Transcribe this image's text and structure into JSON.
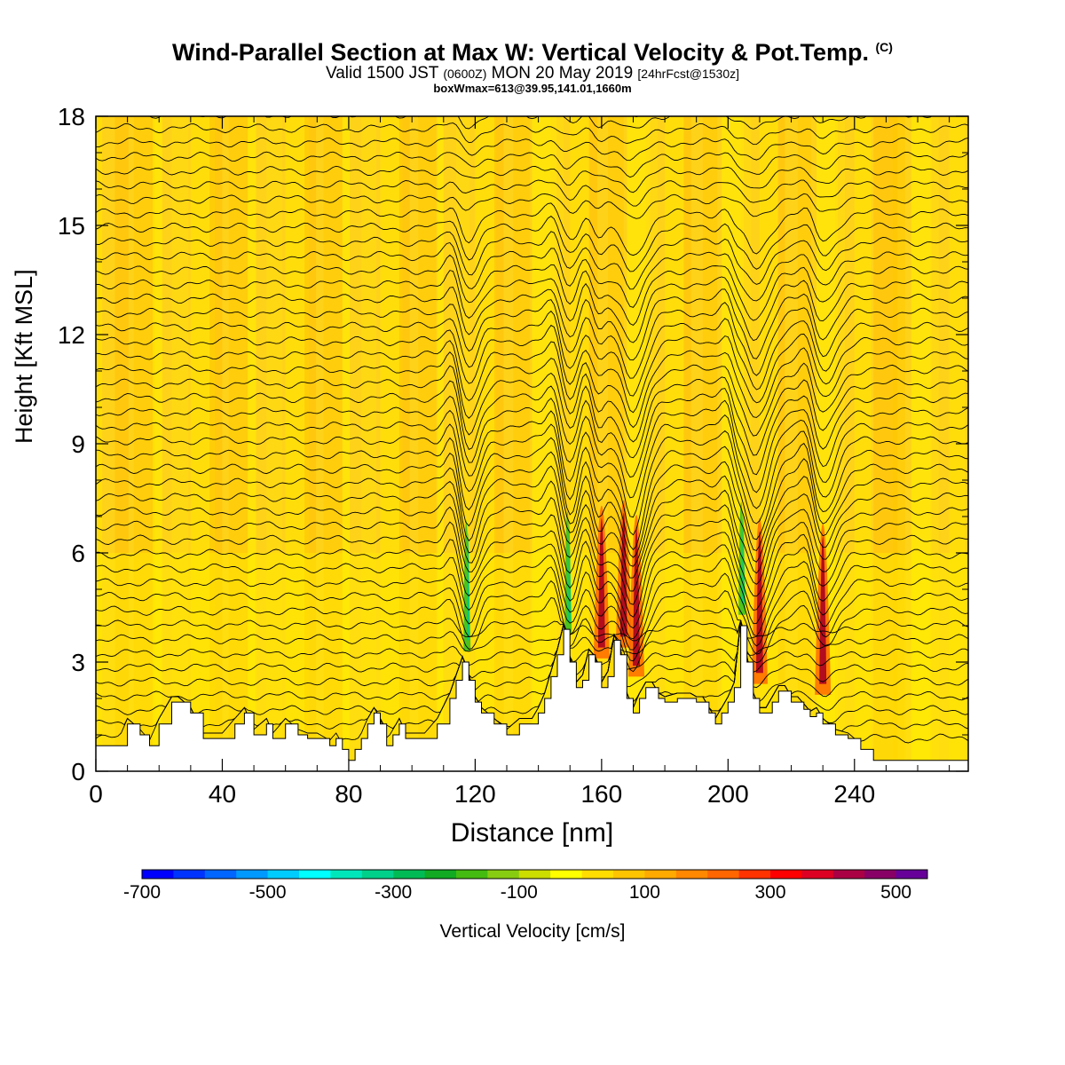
{
  "header": {
    "title_main": "Wind-Parallel Section at Max W: Vertical Velocity & Pot.Temp.",
    "title_mark": "(C)",
    "valid_prefix": "Valid 1500 JST",
    "valid_utc": "(0600Z)",
    "valid_date": "MON 20 May 2019",
    "forecast_tag": "[24hrFcst@1530z]",
    "box_info": "boxWmax=613@39.95,141.01,1660m"
  },
  "axes": {
    "ylabel": "Height [Kft MSL]",
    "xlabel": "Distance [nm]"
  },
  "colorbar": {
    "title": "Vertical Velocity [cm/s]",
    "tick_labels": [
      "-700",
      "-500",
      "-300",
      "-100",
      "100",
      "300",
      "500"
    ],
    "colors": [
      "#0000ff",
      "#0033ff",
      "#0066ff",
      "#0099ff",
      "#00ccff",
      "#00ffff",
      "#00e6bb",
      "#00d08a",
      "#00bb55",
      "#11aa22",
      "#44bb11",
      "#88cc11",
      "#ccdd00",
      "#ffff00",
      "#ffdd00",
      "#ffc400",
      "#ffaa00",
      "#ff8800",
      "#ff6600",
      "#ff3300",
      "#ff0000",
      "#dd0022",
      "#aa0044",
      "#880066",
      "#660099"
    ]
  },
  "chart_data": {
    "type": "heatmap",
    "description_series": "vertical cross-section with potential temperature contours over terrain",
    "xlim": [
      0,
      276
    ],
    "ylim": [
      0,
      18
    ],
    "x_ticks": [
      0,
      40,
      80,
      120,
      160,
      200,
      240
    ],
    "y_ticks": [
      0,
      3,
      6,
      9,
      12,
      15,
      18
    ],
    "terrain_kft": {
      "x": [
        0,
        7,
        10,
        14,
        17,
        20,
        24,
        26,
        30,
        34,
        36,
        40,
        44,
        47,
        50,
        54,
        56,
        60,
        64,
        67,
        70,
        74,
        76,
        78,
        80,
        82,
        84,
        86,
        88,
        90,
        92,
        94,
        96,
        98,
        100,
        104,
        108,
        112,
        114,
        116,
        118,
        120,
        122,
        126,
        130,
        134,
        138,
        140,
        142,
        144,
        146,
        148,
        150,
        152,
        154,
        156,
        158,
        160,
        162,
        164,
        166,
        168,
        170,
        172,
        174,
        176,
        178,
        180,
        184,
        188,
        190,
        192,
        194,
        196,
        198,
        200,
        202,
        204,
        206,
        208,
        210,
        212,
        214,
        216,
        218,
        220,
        222,
        224,
        226,
        228,
        230,
        234,
        238,
        242,
        246,
        250,
        256,
        262,
        268,
        276
      ],
      "y": [
        0.7,
        0.7,
        1.3,
        1.0,
        0.7,
        1.3,
        1.9,
        1.9,
        1.6,
        0.9,
        0.9,
        0.9,
        1.3,
        1.6,
        1.0,
        1.3,
        0.9,
        1.3,
        1.0,
        0.9,
        0.9,
        0.7,
        0.9,
        0.6,
        0.3,
        0.6,
        0.9,
        1.3,
        1.6,
        1.3,
        0.7,
        1.0,
        1.3,
        0.9,
        0.9,
        0.9,
        1.3,
        2.0,
        2.5,
        3.0,
        2.5,
        1.9,
        1.6,
        1.3,
        1.0,
        1.3,
        1.3,
        1.6,
        2.0,
        2.6,
        3.2,
        3.9,
        3.0,
        2.3,
        2.5,
        3.2,
        3.0,
        2.3,
        2.6,
        3.6,
        3.2,
        2.0,
        1.6,
        2.0,
        2.3,
        2.3,
        2.0,
        1.9,
        2.0,
        2.0,
        1.9,
        1.9,
        1.6,
        1.3,
        1.6,
        1.9,
        2.3,
        4.0,
        3.0,
        2.0,
        1.6,
        1.6,
        1.9,
        2.2,
        2.2,
        1.9,
        1.9,
        1.7,
        1.5,
        1.6,
        1.3,
        1.0,
        0.9,
        0.6,
        0.3,
        0.3,
        0.3,
        0.3,
        0.3,
        0.3
      ]
    },
    "updraft_cores": [
      {
        "x": 118,
        "polarity": "down"
      },
      {
        "x": 150,
        "polarity": "down"
      },
      {
        "x": 160,
        "polarity": "up"
      },
      {
        "x": 167,
        "polarity": "up"
      },
      {
        "x": 171,
        "polarity": "up"
      },
      {
        "x": 205,
        "polarity": "down"
      },
      {
        "x": 210,
        "polarity": "up"
      },
      {
        "x": 230,
        "polarity": "up"
      }
    ],
    "colorbar_range": [
      -700,
      550
    ],
    "zlabel": "Vertical Velocity [cm/s]"
  }
}
